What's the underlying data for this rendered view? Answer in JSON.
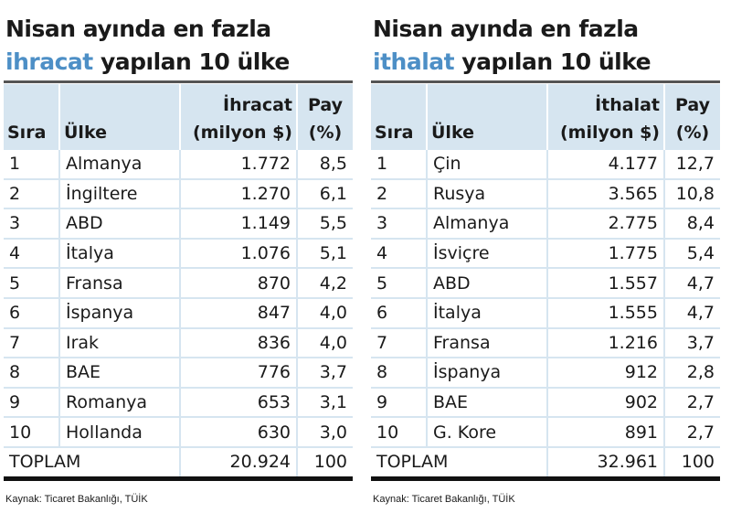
{
  "panels": [
    {
      "title": {
        "line1": "Nisan ayında en fazla",
        "highlight": "ihracat",
        "rest": "yapılan 10 ülke"
      },
      "headers": [
        "Sıra",
        "Ülke",
        "İhracat",
        "(milyon $)",
        "Pay",
        "(%)"
      ],
      "rows": [
        [
          "1",
          "Almanya",
          "1.772",
          "8,5"
        ],
        [
          "2",
          "İngiltere",
          "1.270",
          "6,1"
        ],
        [
          "3",
          "ABD",
          "1.149",
          "5,5"
        ],
        [
          "4",
          "İtalya",
          "1.076",
          "5,1"
        ],
        [
          "5",
          "Fransa",
          "870",
          "4,2"
        ],
        [
          "6",
          "İspanya",
          "847",
          "4,0"
        ],
        [
          "7",
          "Irak",
          "836",
          "4,0"
        ],
        [
          "8",
          "BAE",
          "776",
          "3,7"
        ],
        [
          "9",
          "Romanya",
          "653",
          "3,1"
        ],
        [
          "10",
          "Hollanda",
          "630",
          "3,0"
        ]
      ],
      "total": [
        "TOPLAM",
        "20.924",
        "100"
      ],
      "source": "Kaynak: Ticaret Bakanlığı, TÜİK"
    },
    {
      "title": {
        "line1": "Nisan ayında en fazla",
        "highlight": "ithalat",
        "rest": "yapılan 10 ülke"
      },
      "headers": [
        "Sıra",
        "Ülke",
        "İthalat",
        "(milyon $)",
        "Pay",
        "(%)"
      ],
      "rows": [
        [
          "1",
          "Çin",
          "4.177",
          "12,7"
        ],
        [
          "2",
          "Rusya",
          "3.565",
          "10,8"
        ],
        [
          "3",
          "Almanya",
          "2.775",
          "8,4"
        ],
        [
          "4",
          "İsviçre",
          "1.775",
          "5,4"
        ],
        [
          "5",
          "ABD",
          "1.557",
          "4,7"
        ],
        [
          "6",
          "İtalya",
          "1.555",
          "4,7"
        ],
        [
          "7",
          "Fransa",
          "1.216",
          "3,7"
        ],
        [
          "8",
          "İspanya",
          "912",
          "2,8"
        ],
        [
          "9",
          "BAE",
          "902",
          "2,7"
        ],
        [
          "10",
          "G. Kore",
          "891",
          "2,7"
        ]
      ],
      "total": [
        "TOPLAM",
        "32.961",
        "100"
      ],
      "source": "Kaynak: Ticaret Bakanlığı, TÜİK"
    }
  ]
}
